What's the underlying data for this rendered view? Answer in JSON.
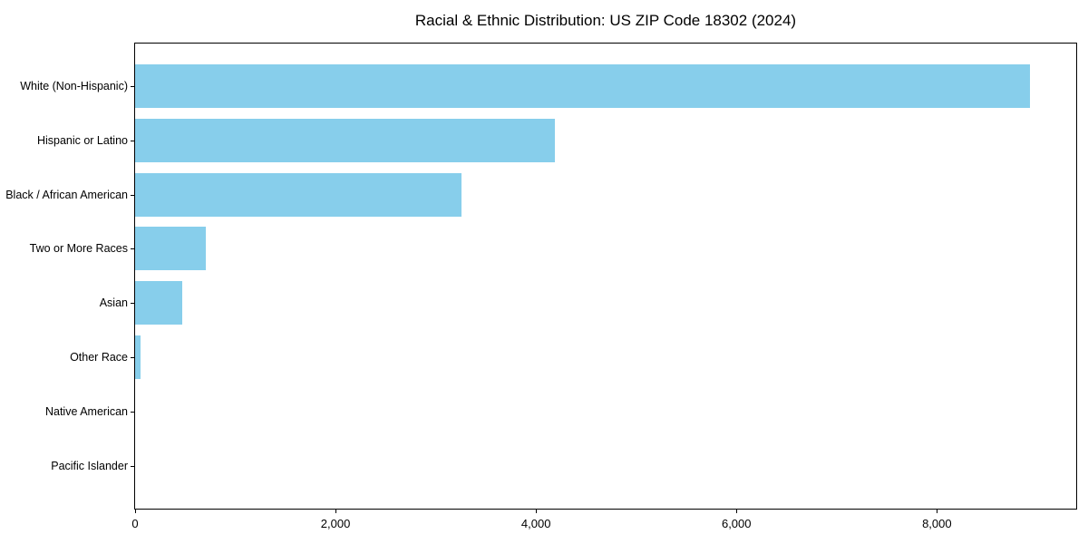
{
  "chart_data": {
    "type": "bar",
    "orientation": "horizontal",
    "title": "Racial & Ethnic Distribution: US ZIP Code 18302 (2024)",
    "categories": [
      "White (Non-Hispanic)",
      "Hispanic or Latino",
      "Black / African American",
      "Two or More Races",
      "Asian",
      "Other Race",
      "Native American",
      "Pacific Islander"
    ],
    "values": [
      8930,
      4190,
      3260,
      710,
      470,
      50,
      0,
      0
    ],
    "xlabel": "",
    "ylabel": "",
    "xlim": [
      0,
      9390
    ],
    "x_ticks": [
      0,
      2000,
      4000,
      6000,
      8000
    ],
    "x_tick_labels": [
      "0",
      "2,000",
      "4,000",
      "6,000",
      "8,000"
    ],
    "bar_color": "#87CEEB",
    "text_color": "#000000",
    "grid": false,
    "legend": null
  }
}
